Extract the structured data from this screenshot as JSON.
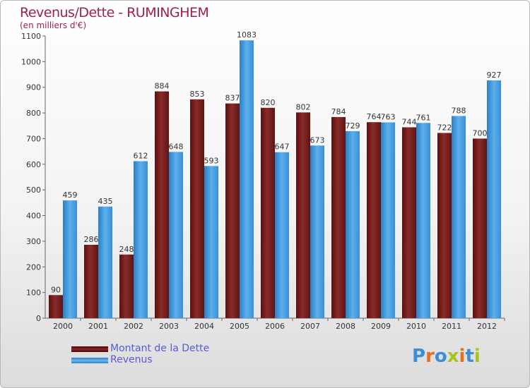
{
  "title": "Revenus/Dette - RUMINGHEM",
  "subtitle": "(en milliers d'€)",
  "logo": {
    "text": "Proxiti",
    "letters": [
      "P",
      "r",
      "o",
      "x",
      "i",
      "t",
      "i"
    ],
    "colors": [
      "#3b8fd6",
      "#e6701e",
      "#3b8fd6",
      "#a8c41a",
      "#e6701e",
      "#3b8fd6",
      "#a8c41a"
    ]
  },
  "chart_data": {
    "type": "bar",
    "categories": [
      "2000",
      "2001",
      "2002",
      "2003",
      "2004",
      "2005",
      "2006",
      "2007",
      "2008",
      "2009",
      "2010",
      "2011",
      "2012"
    ],
    "series": [
      {
        "name": "Montant de la Dette",
        "color": "#7b1a1a",
        "values": [
          90,
          286,
          248,
          884,
          853,
          837,
          820,
          802,
          784,
          764,
          744,
          722,
          700
        ]
      },
      {
        "name": "Revenus",
        "color": "#4a9fe0",
        "values": [
          459,
          435,
          612,
          648,
          593,
          1083,
          647,
          673,
          729,
          763,
          761,
          788,
          927
        ]
      }
    ],
    "ylim": [
      0,
      1100
    ],
    "yticks": [
      0,
      100,
      200,
      300,
      400,
      500,
      600,
      700,
      800,
      900,
      1000,
      1100
    ],
    "grid": false,
    "legend": "bottom-left"
  }
}
